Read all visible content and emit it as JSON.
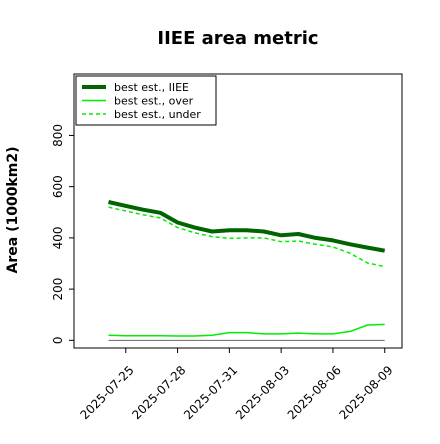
{
  "chart_data": {
    "type": "line",
    "title": "IIEE area metric",
    "xlabel": "",
    "ylabel": "Area (1000km2)",
    "x": [
      "2025-07-24",
      "2025-07-25",
      "2025-07-26",
      "2025-07-27",
      "2025-07-28",
      "2025-07-29",
      "2025-07-30",
      "2025-07-31",
      "2025-08-01",
      "2025-08-02",
      "2025-08-03",
      "2025-08-04",
      "2025-08-05",
      "2025-08-06",
      "2025-08-07",
      "2025-08-08",
      "2025-08-09"
    ],
    "xticks": [
      "2025-07-25",
      "2025-07-28",
      "2025-07-31",
      "2025-08-03",
      "2025-08-06",
      "2025-08-09"
    ],
    "yticks": [
      0,
      200,
      400,
      600,
      800
    ],
    "ylim": [
      -30,
      1040
    ],
    "xlim": [
      "2025-07-22",
      "2025-08-10"
    ],
    "grid": false,
    "legend_position": "top-left",
    "series": [
      {
        "name": "best est., IIEE",
        "style": "solid-thick",
        "color": "#006400",
        "values": [
          540,
          525,
          510,
          498,
          460,
          440,
          425,
          430,
          430,
          425,
          410,
          415,
          400,
          390,
          375,
          362,
          350
        ]
      },
      {
        "name": "best est., over",
        "style": "solid",
        "color": "#00ee00",
        "values": [
          20,
          18,
          18,
          18,
          17,
          17,
          20,
          30,
          30,
          25,
          25,
          28,
          25,
          25,
          35,
          60,
          62
        ]
      },
      {
        "name": "best est., under",
        "style": "dashed",
        "color": "#00ee00",
        "values": [
          520,
          505,
          490,
          478,
          440,
          420,
          405,
          398,
          400,
          400,
          385,
          388,
          375,
          365,
          340,
          302,
          288
        ]
      }
    ],
    "baseline": {
      "value": 0,
      "color": "#666666"
    }
  }
}
